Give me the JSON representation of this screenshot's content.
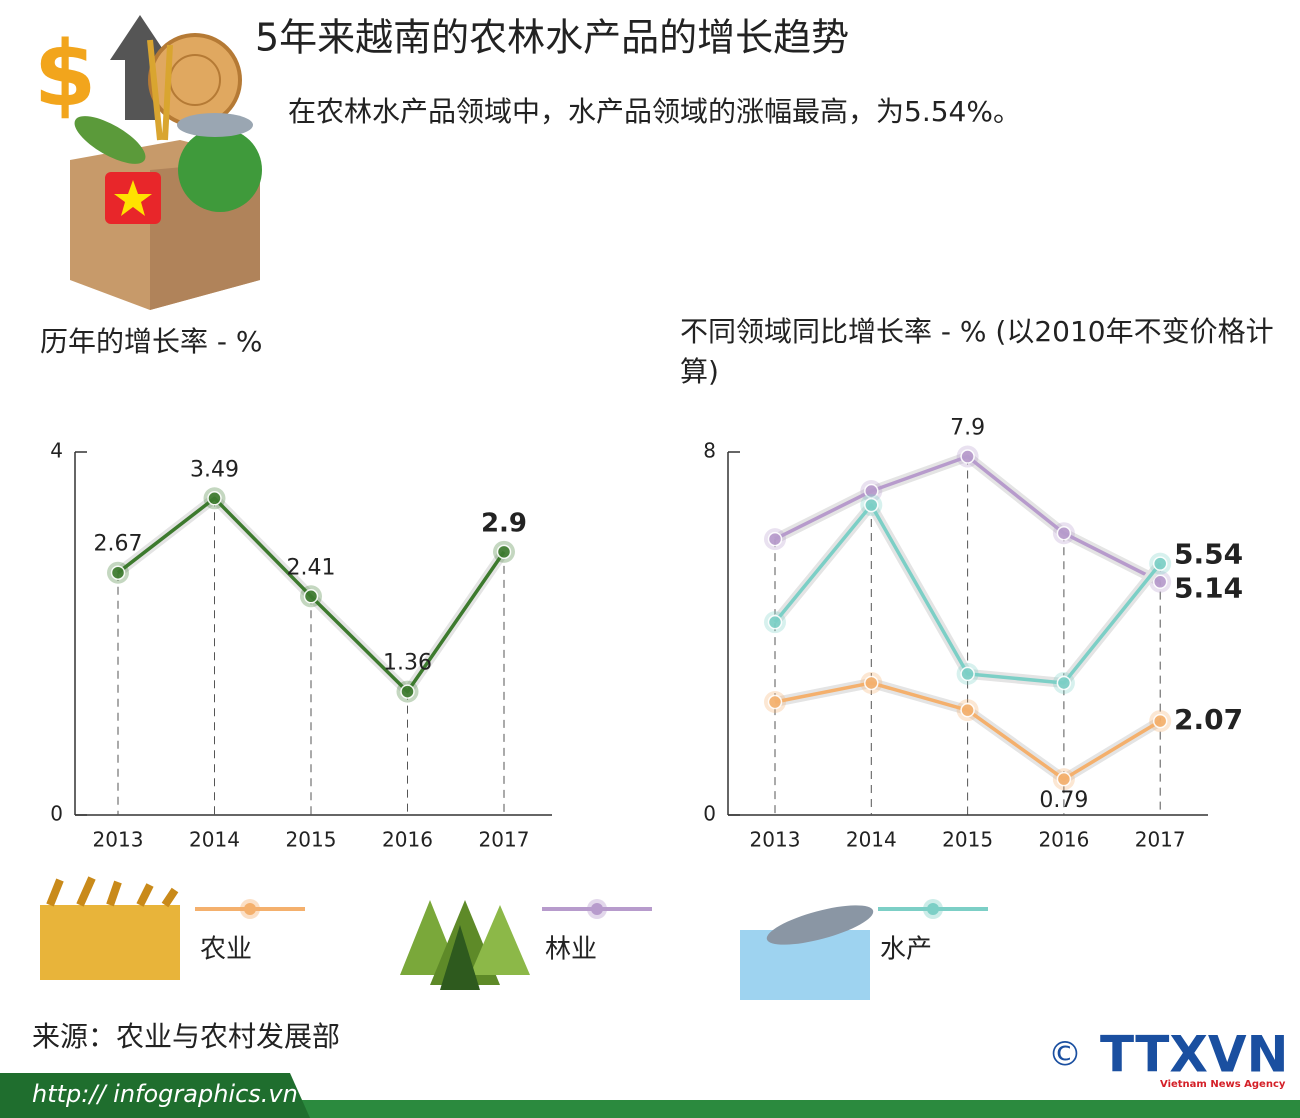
{
  "header": {
    "title": "5年来越南的农林水产品的增长趋势",
    "subtitle": "在农林水产品领域中，水产品领域的涨幅最高，为5.54%。"
  },
  "chart_data": [
    {
      "type": "line",
      "title": "历年的增长率 - %",
      "categories": [
        "2013",
        "2014",
        "2015",
        "2016",
        "2017"
      ],
      "series": [
        {
          "color": "#3d7a2e",
          "values": [
            2.67,
            3.49,
            2.41,
            1.36,
            2.9
          ]
        }
      ],
      "ylim": [
        0,
        4
      ],
      "yticks": [
        0,
        4
      ]
    },
    {
      "type": "line",
      "title": "不同领域同比增长率 - % (以2010年不变价格计算)",
      "categories": [
        "2013",
        "2014",
        "2015",
        "2016",
        "2017"
      ],
      "series": [
        {
          "name": "农业",
          "color": "#f4b06d",
          "values": [
            2.49,
            2.91,
            2.31,
            0.79,
            2.07
          ],
          "value_labels": [
            null,
            null,
            null,
            "0.79",
            "2.07"
          ]
        },
        {
          "name": "林业",
          "color": "#b79bcc",
          "values": [
            6.08,
            7.14,
            7.9,
            6.21,
            5.14
          ],
          "value_labels": [
            null,
            null,
            "7.9",
            null,
            "5.14"
          ]
        },
        {
          "name": "水产",
          "color": "#7ccfc6",
          "values": [
            4.25,
            6.83,
            3.11,
            2.91,
            5.54
          ],
          "value_labels": [
            null,
            null,
            null,
            null,
            "5.54"
          ]
        }
      ],
      "ylim": [
        0,
        8
      ],
      "yticks": [
        0,
        8
      ]
    }
  ],
  "footer": {
    "source": "来源：农业与农村发展部",
    "url": "http:// infographics.vn",
    "copyright": "©",
    "logo": "TTXVN",
    "logo_sub": "Vietnam News Agency"
  }
}
